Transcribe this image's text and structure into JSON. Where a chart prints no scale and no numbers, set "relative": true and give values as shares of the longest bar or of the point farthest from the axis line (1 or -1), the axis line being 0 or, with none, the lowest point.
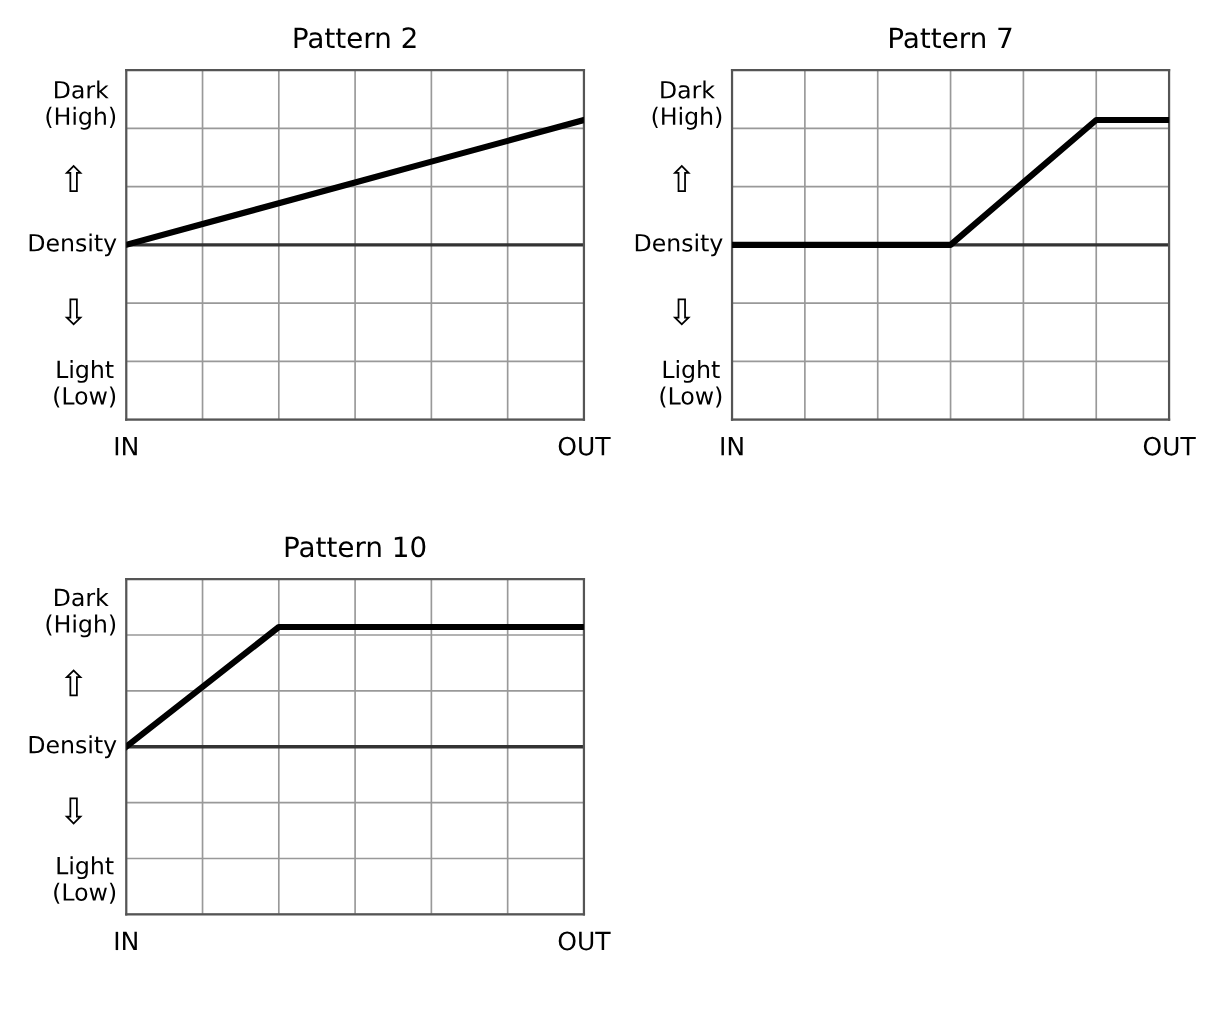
{
  "chart_data": [
    {
      "type": "line",
      "title": "Pattern 2",
      "relative": true,
      "grid": true,
      "marker": "none",
      "line_style": "solid",
      "categories": [
        "IN",
        null,
        null,
        null,
        null,
        null,
        "OUT"
      ],
      "series": [
        {
          "color": "#000000",
          "values": [
            0,
            0.167,
            0.333,
            0.5,
            0.667,
            0.833,
            1
          ]
        }
      ],
      "annotations": [
        "Dark\n(High)",
        "⇧",
        "Density",
        "⇩",
        "Light\n(Low)"
      ]
    },
    {
      "type": "line",
      "title": "Pattern 7",
      "relative": true,
      "grid": true,
      "marker": "none",
      "line_style": "solid",
      "categories": [
        "IN",
        null,
        null,
        null,
        null,
        null,
        "OUT"
      ],
      "series": [
        {
          "color": "#000000",
          "values": [
            0,
            0,
            0,
            0,
            0.5,
            1,
            1
          ]
        }
      ],
      "annotations": [
        "Dark\n(High)",
        "⇧",
        "Density",
        "⇩",
        "Light\n(Low)"
      ]
    },
    {
      "type": "line",
      "title": "Pattern 10",
      "relative": true,
      "grid": true,
      "marker": "none",
      "line_style": "solid",
      "categories": [
        "IN",
        null,
        null,
        null,
        null,
        null,
        "OUT"
      ],
      "series": [
        {
          "color": "#000000",
          "values": [
            0,
            0.5,
            1,
            1,
            1,
            1,
            1
          ]
        }
      ],
      "annotations": [
        "Dark\n(High)",
        "⇧",
        "Density",
        "⇩",
        "Light\n(Low)"
      ]
    }
  ]
}
